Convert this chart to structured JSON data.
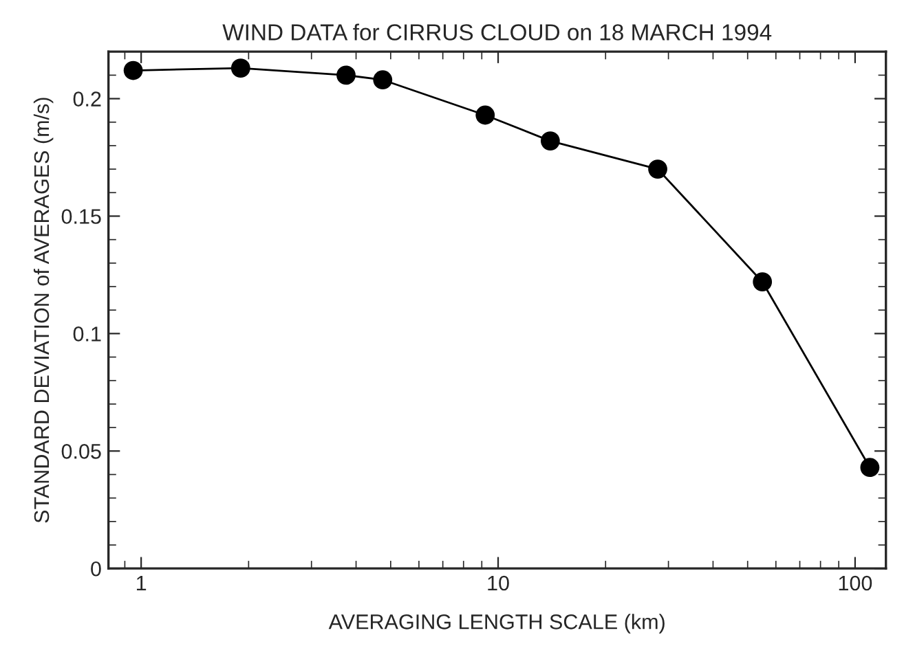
{
  "chart_data": {
    "type": "line",
    "title": "WIND DATA for CIRRUS CLOUD on 18 MARCH 1994",
    "xlabel": "AVERAGING LENGTH SCALE (km)",
    "ylabel": "STANDARD DEVIATION of AVERAGES (m/s)",
    "x": [
      0.95,
      1.9,
      3.75,
      4.75,
      9.2,
      14,
      28,
      55,
      110
    ],
    "series": [
      {
        "color": "#000000",
        "values": [
          0.212,
          0.213,
          0.21,
          0.208,
          0.193,
          0.182,
          0.17,
          0.122,
          0.043
        ]
      }
    ],
    "log": "x",
    "xlim": [
      0.81,
      122
    ],
    "xticks": [
      1,
      10,
      100
    ],
    "ylim": [
      0,
      0.22
    ],
    "yticks": [
      0,
      0.05,
      0.1,
      0.15,
      0.2
    ],
    "grid": false,
    "legend": false,
    "marker": "circle",
    "line_style": "solid"
  }
}
